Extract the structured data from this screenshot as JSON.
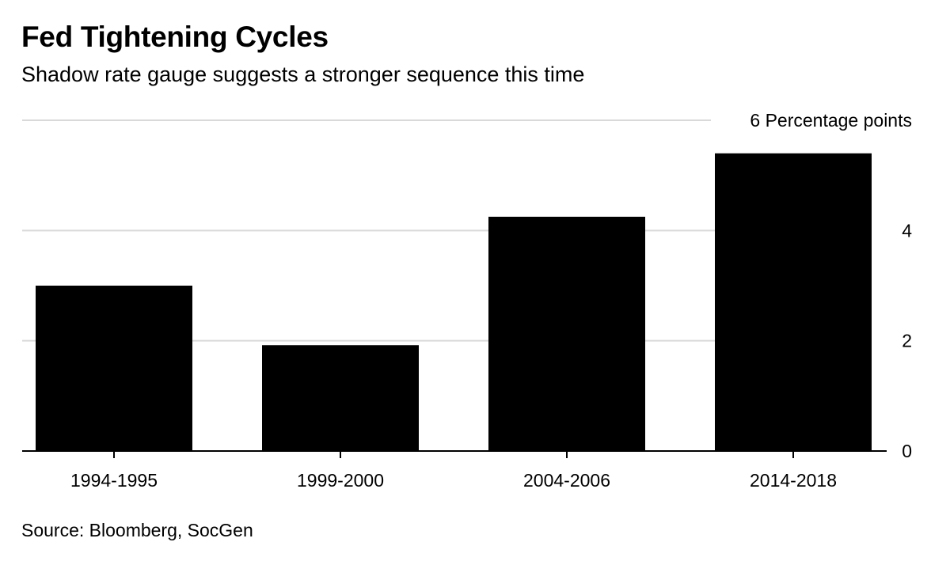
{
  "title": "Fed Tightening Cycles",
  "subtitle": "Shadow rate gauge suggests a stronger sequence this time",
  "source": "Source: Bloomberg, SocGen",
  "chart_data": {
    "type": "bar",
    "title": "Fed Tightening Cycles",
    "subtitle": "Shadow rate gauge suggests a stronger sequence this time",
    "categories": [
      "1994-1995",
      "1999-2000",
      "2004-2006",
      "2014-2018"
    ],
    "values": [
      3.0,
      1.92,
      4.25,
      5.4
    ],
    "ylabel": "Percentage points",
    "ylim": [
      0,
      6
    ],
    "yticks": [
      0,
      2,
      4,
      6
    ],
    "ytick_labels": [
      "0",
      "2",
      "4",
      "6 Percentage points"
    ],
    "y_axis_side": "right",
    "grid": true,
    "bar_color": "#000000",
    "grid_color": "#d9d9d9",
    "legend": "none"
  }
}
